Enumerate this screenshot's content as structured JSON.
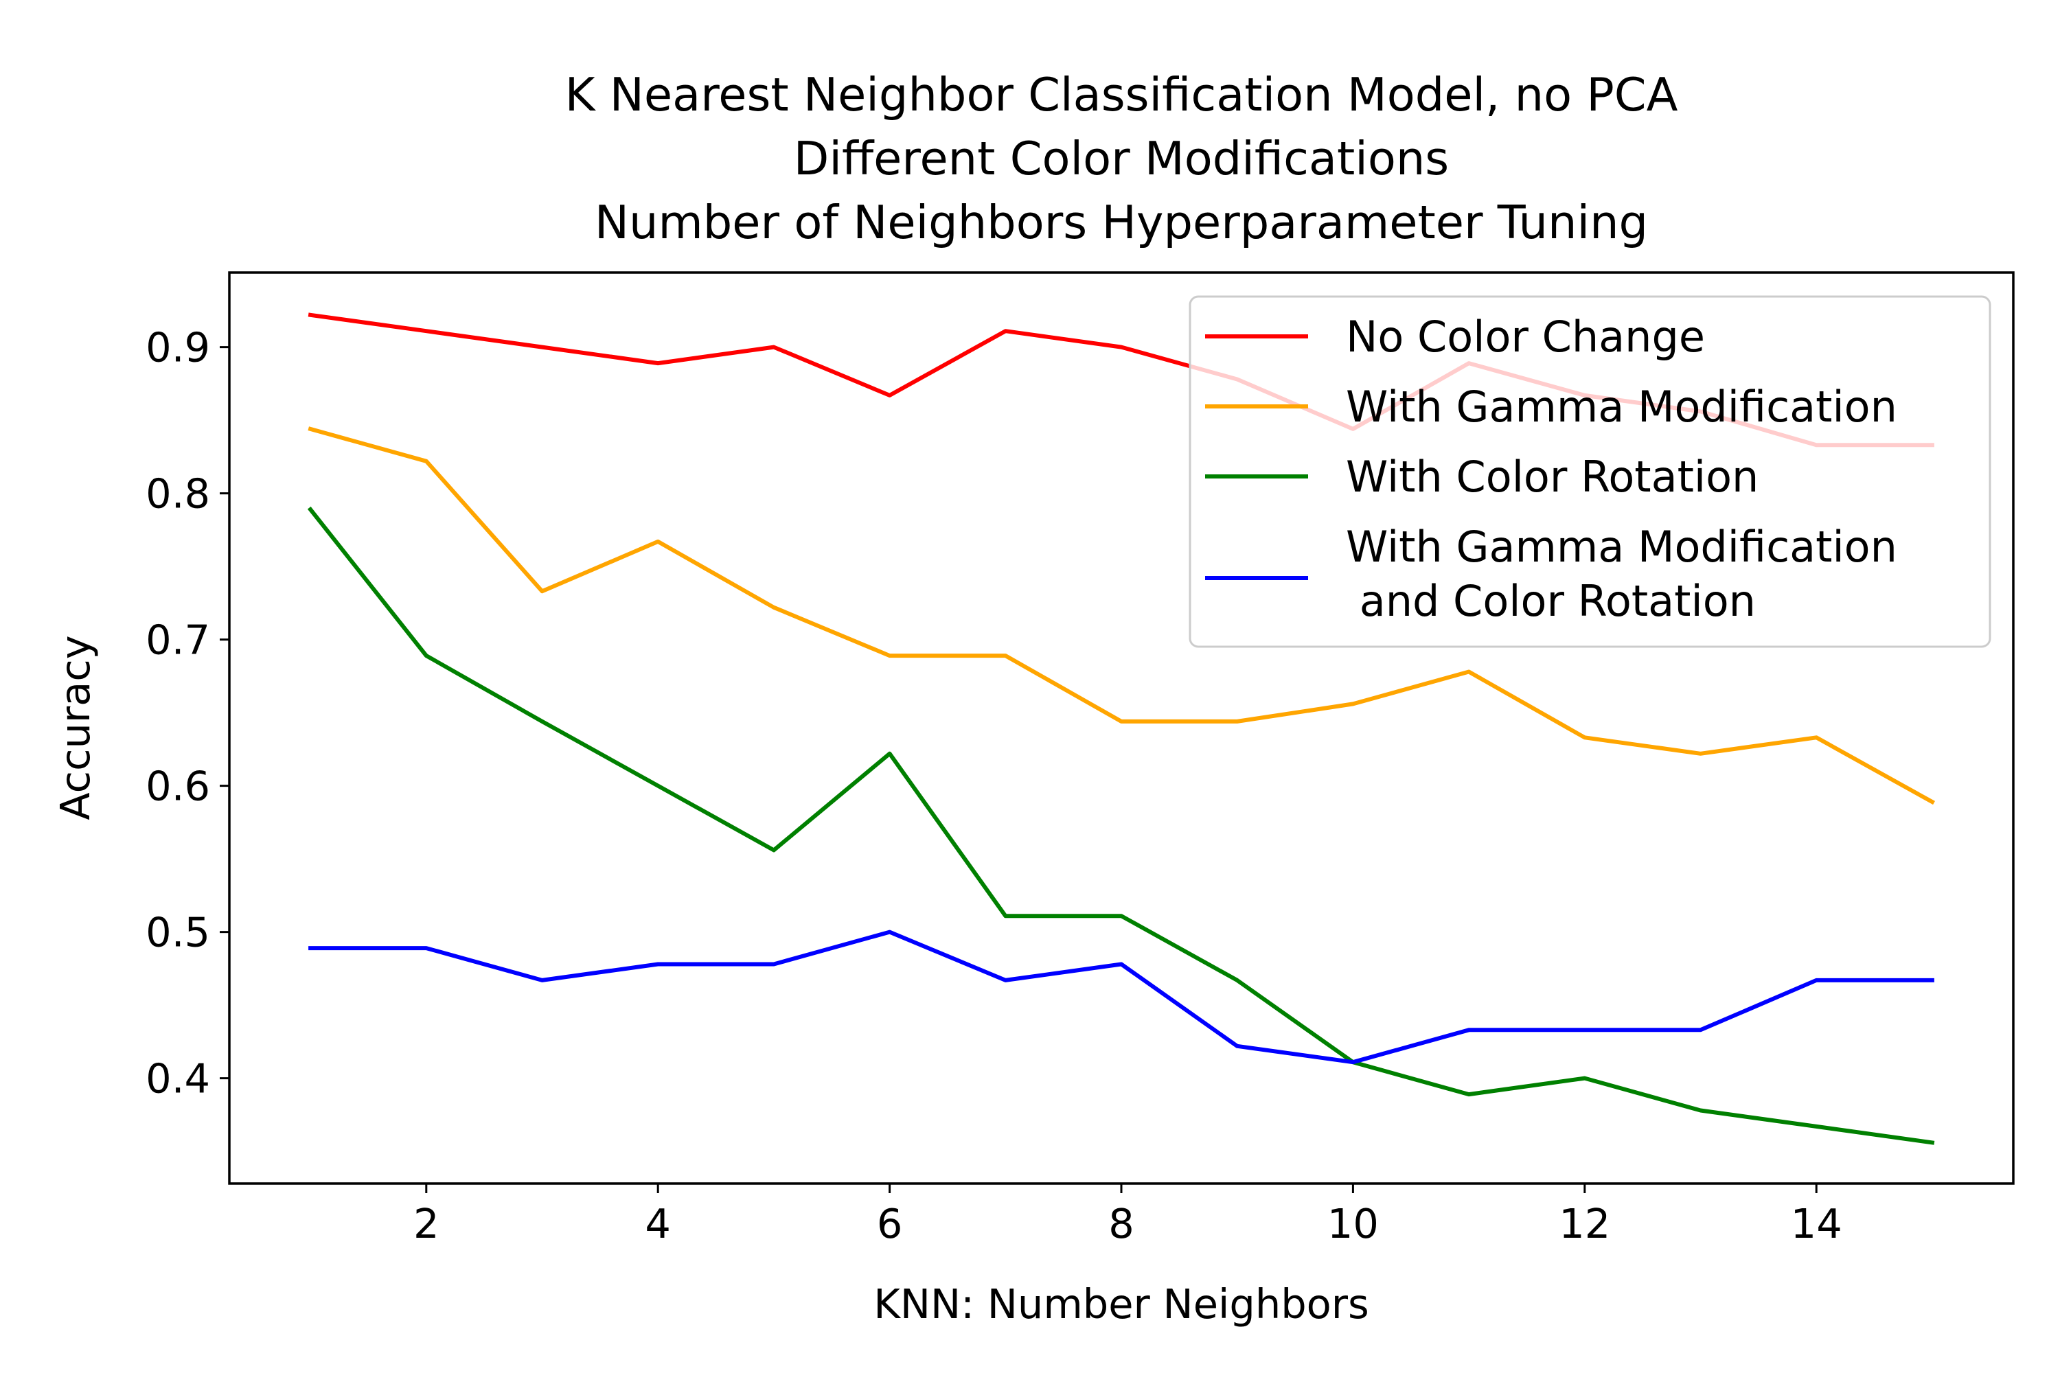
{
  "chart_data": {
    "type": "line",
    "title_lines": [
      "K Nearest Neighbor Classification Model, no PCA",
      "Different Color Modifications",
      "Number of Neighbors Hyperparameter Tuning"
    ],
    "xlabel": "KNN: Number Neighbors",
    "ylabel": "Accuracy",
    "xlim": [
      0.3,
      15.7
    ],
    "ylim": [
      0.328,
      0.951
    ],
    "x_ticks": [
      2,
      4,
      6,
      8,
      10,
      12,
      14
    ],
    "y_ticks": [
      0.4,
      0.5,
      0.6,
      0.7,
      0.8,
      0.9
    ],
    "x": [
      1,
      2,
      3,
      4,
      5,
      6,
      7,
      8,
      9,
      10,
      11,
      12,
      13,
      14,
      15
    ],
    "series": [
      {
        "name": "No Color Change",
        "color": "#ff0000",
        "values": [
          0.922,
          0.911,
          0.9,
          0.889,
          0.9,
          0.867,
          0.911,
          0.9,
          0.878,
          0.844,
          0.889,
          0.867,
          0.856,
          0.833,
          0.833
        ]
      },
      {
        "name": "With Gamma Modification",
        "color": "#ffa500",
        "values": [
          0.844,
          0.822,
          0.733,
          0.767,
          0.722,
          0.689,
          0.689,
          0.644,
          0.644,
          0.656,
          0.678,
          0.633,
          0.622,
          0.633,
          0.589
        ]
      },
      {
        "name": "With Color Rotation",
        "color": "#008000",
        "values": [
          0.789,
          0.689,
          0.644,
          0.6,
          0.556,
          0.622,
          0.511,
          0.511,
          0.467,
          0.411,
          0.389,
          0.4,
          0.378,
          0.367,
          0.356
        ]
      },
      {
        "name_lines": [
          "With Gamma Modification",
          " and Color Rotation"
        ],
        "color": "#0000ff",
        "values": [
          0.489,
          0.489,
          0.467,
          0.478,
          0.478,
          0.5,
          0.467,
          0.478,
          0.422,
          0.411,
          0.433,
          0.433,
          0.433,
          0.467,
          0.467
        ]
      }
    ],
    "grid": false,
    "legend_position": "top-right"
  }
}
